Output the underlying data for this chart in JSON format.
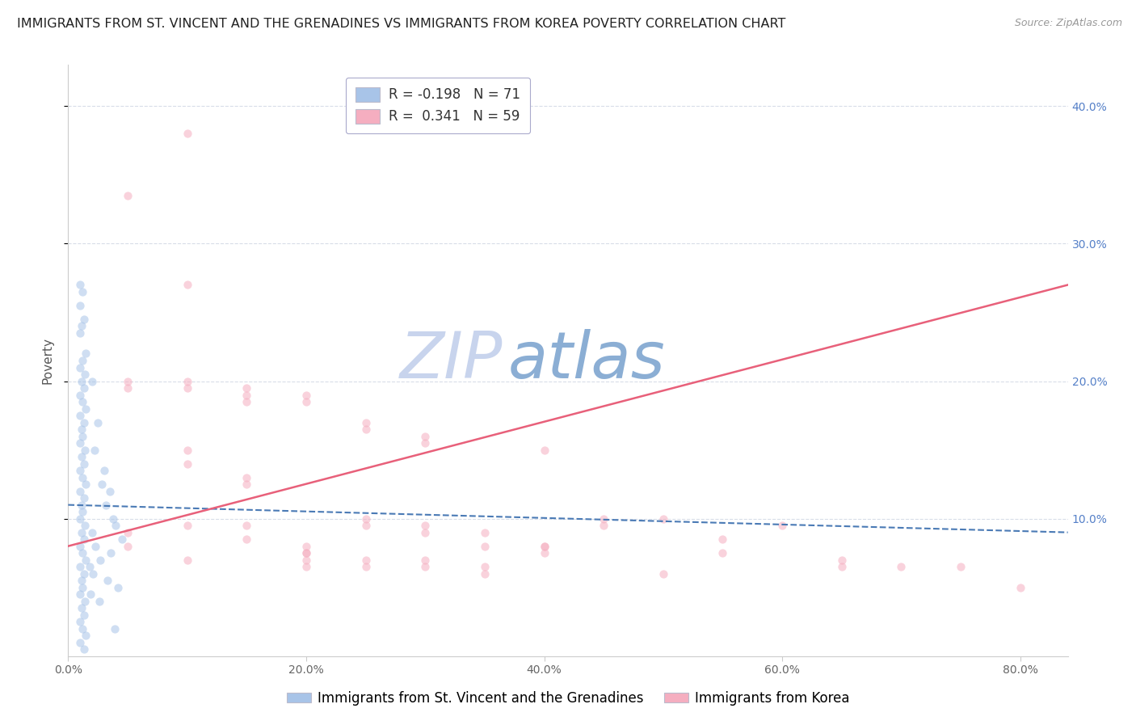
{
  "title": "IMMIGRANTS FROM ST. VINCENT AND THE GRENADINES VS IMMIGRANTS FROM KOREA POVERTY CORRELATION CHART",
  "source": "Source: ZipAtlas.com",
  "ylabel": "Poverty",
  "right_ytick_labels": [
    "40.0%",
    "30.0%",
    "20.0%",
    "10.0%"
  ],
  "right_ytick_vals": [
    40.0,
    30.0,
    20.0,
    10.0
  ],
  "xtick_labels": [
    "0.0%",
    "20.0%",
    "40.0%",
    "60.0%",
    "80.0%"
  ],
  "xtick_vals": [
    0.0,
    20.0,
    40.0,
    60.0,
    80.0
  ],
  "xlim": [
    0.0,
    84.0
  ],
  "ylim": [
    0.0,
    43.0
  ],
  "legend_blue_r": "-0.198",
  "legend_blue_n": "71",
  "legend_pink_r": "0.341",
  "legend_pink_n": "59",
  "legend_label_blue": "Immigrants from St. Vincent and the Grenadines",
  "legend_label_pink": "Immigrants from Korea",
  "blue_color": "#a8c4e8",
  "pink_color": "#f5aec0",
  "blue_line_color": "#4a7ab5",
  "pink_line_color": "#e8607a",
  "blue_scatter_x": [
    1.0,
    1.2,
    1.0,
    1.3,
    1.1,
    1.0,
    1.5,
    1.2,
    1.0,
    1.4,
    1.1,
    1.3,
    1.0,
    1.2,
    1.5,
    1.0,
    1.3,
    1.1,
    1.2,
    1.0,
    1.4,
    1.1,
    1.3,
    1.0,
    1.2,
    1.5,
    1.0,
    1.3,
    1.1,
    1.2,
    1.0,
    1.4,
    1.1,
    1.3,
    1.0,
    1.2,
    1.5,
    1.0,
    1.3,
    1.1,
    1.2,
    1.0,
    1.4,
    1.1,
    1.3,
    1.0,
    1.2,
    1.5,
    1.0,
    1.3,
    2.0,
    2.5,
    2.2,
    3.0,
    2.8,
    3.5,
    3.2,
    3.8,
    4.0,
    2.0,
    4.5,
    2.3,
    3.6,
    2.7,
    1.8,
    2.1,
    3.3,
    4.2,
    1.9,
    2.6,
    3.9
  ],
  "blue_scatter_y": [
    27.0,
    26.5,
    25.5,
    24.5,
    24.0,
    23.5,
    22.0,
    21.5,
    21.0,
    20.5,
    20.0,
    19.5,
    19.0,
    18.5,
    18.0,
    17.5,
    17.0,
    16.5,
    16.0,
    15.5,
    15.0,
    14.5,
    14.0,
    13.5,
    13.0,
    12.5,
    12.0,
    11.5,
    11.0,
    10.5,
    10.0,
    9.5,
    9.0,
    8.5,
    8.0,
    7.5,
    7.0,
    6.5,
    6.0,
    5.5,
    5.0,
    4.5,
    4.0,
    3.5,
    3.0,
    2.5,
    2.0,
    1.5,
    1.0,
    0.5,
    20.0,
    17.0,
    15.0,
    13.5,
    12.5,
    12.0,
    11.0,
    10.0,
    9.5,
    9.0,
    8.5,
    8.0,
    7.5,
    7.0,
    6.5,
    6.0,
    5.5,
    5.0,
    4.5,
    4.0,
    2.0
  ],
  "pink_scatter_x": [
    5.0,
    5.0,
    10.0,
    10.0,
    10.0,
    15.0,
    15.0,
    15.0,
    15.0,
    20.0,
    20.0,
    20.0,
    20.0,
    20.0,
    25.0,
    25.0,
    25.0,
    25.0,
    30.0,
    30.0,
    30.0,
    30.0,
    35.0,
    35.0,
    40.0,
    40.0,
    40.0,
    45.0,
    45.0,
    50.0,
    50.0,
    55.0,
    55.0,
    60.0,
    65.0,
    65.0,
    70.0,
    75.0,
    80.0,
    10.0,
    10.0,
    10.0,
    15.0,
    15.0,
    15.0,
    20.0,
    20.0,
    25.0,
    25.0,
    30.0,
    30.0,
    35.0,
    35.0,
    40.0,
    5.0,
    5.0,
    5.0,
    10.0,
    10.0
  ],
  "pink_scatter_y": [
    20.0,
    19.5,
    19.5,
    20.0,
    9.5,
    19.5,
    19.0,
    18.5,
    9.5,
    19.0,
    18.5,
    7.5,
    7.0,
    6.5,
    17.0,
    16.5,
    10.0,
    9.5,
    16.0,
    15.5,
    9.5,
    9.0,
    9.0,
    8.0,
    15.0,
    8.0,
    7.5,
    10.0,
    9.5,
    10.0,
    6.0,
    8.5,
    7.5,
    9.5,
    7.0,
    6.5,
    6.5,
    6.5,
    5.0,
    15.0,
    14.0,
    7.0,
    13.0,
    12.5,
    8.5,
    8.0,
    7.5,
    7.0,
    6.5,
    7.0,
    6.5,
    6.5,
    6.0,
    8.0,
    33.5,
    9.0,
    8.0,
    38.0,
    27.0
  ],
  "blue_trend_x": [
    0.0,
    84.0
  ],
  "blue_trend_y": [
    11.0,
    9.0
  ],
  "pink_trend_x": [
    0.0,
    84.0
  ],
  "pink_trend_y": [
    8.0,
    27.0
  ],
  "watermark_zip": "ZIP",
  "watermark_atlas": "atlas",
  "watermark_color_zip": "#c8d4ed",
  "watermark_color_atlas": "#8baed4",
  "grid_color": "#d8dde8",
  "background_color": "#ffffff",
  "title_fontsize": 11.5,
  "source_fontsize": 9,
  "axis_label_fontsize": 11,
  "tick_fontsize": 10,
  "legend_fontsize": 12,
  "scatter_size": 55,
  "scatter_alpha": 0.55,
  "right_tick_color": "#5580c8",
  "left_border_color": "#cccccc"
}
